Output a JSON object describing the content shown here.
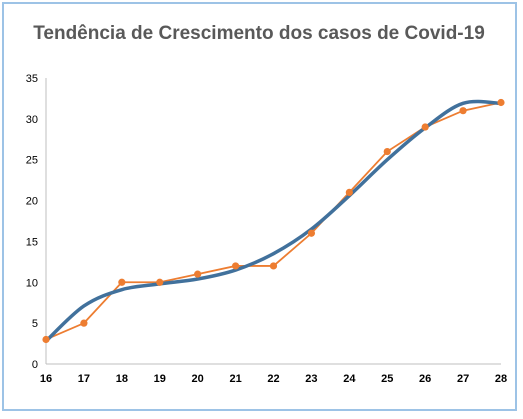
{
  "chart_data": {
    "type": "line",
    "title": "Tendência de Crescimento dos casos de Covid-19",
    "xlabel": "",
    "ylabel": "",
    "x": [
      16,
      17,
      18,
      19,
      20,
      21,
      22,
      23,
      24,
      25,
      26,
      27,
      28
    ],
    "xlim": [
      16,
      28
    ],
    "ylim": [
      0,
      35
    ],
    "yticks": [
      0,
      5,
      10,
      15,
      20,
      25,
      30,
      35
    ],
    "grid": false,
    "legend": "none",
    "series": [
      {
        "kind": "data",
        "color": "#ed7d31",
        "values": [
          3,
          5,
          10,
          10,
          11,
          12,
          12,
          16,
          21,
          26,
          29,
          31,
          32
        ]
      },
      {
        "kind": "trendline",
        "color": "#41719c",
        "values": [
          2.8,
          7.1,
          9.1,
          9.8,
          10.4,
          11.5,
          13.5,
          16.5,
          20.6,
          25.0,
          28.9,
          31.9,
          31.9
        ]
      }
    ]
  }
}
